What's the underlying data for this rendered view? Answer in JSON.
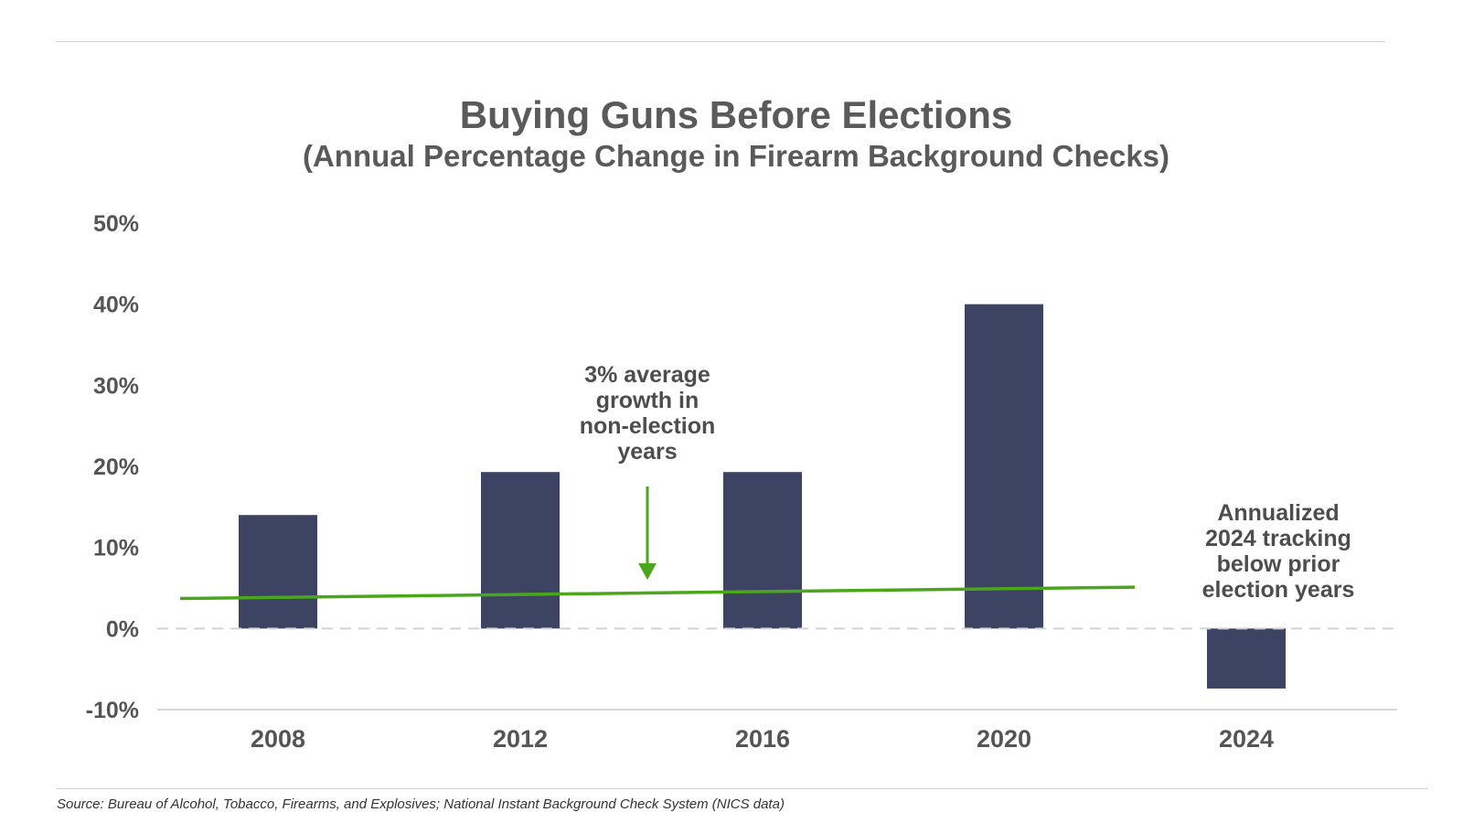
{
  "chart_data": {
    "type": "bar",
    "title": "Buying Guns Before Elections",
    "subtitle": "(Annual Percentage Change in Firearm Background Checks)",
    "categories": [
      "2008",
      "2012",
      "2016",
      "2020",
      "2024"
    ],
    "values": [
      14,
      19.3,
      19.3,
      40,
      -7.4
    ],
    "ylim": [
      -10,
      50
    ],
    "yticks": [
      50,
      40,
      30,
      20,
      10,
      0,
      -10
    ],
    "ytick_labels": [
      "50%",
      "40%",
      "30%",
      "20%",
      "10%",
      "0%",
      "-10%"
    ],
    "xlabel": "",
    "ylabel": "",
    "grid": false,
    "zero_line": "dashed",
    "trend_line": {
      "start_value": 3.7,
      "end_value": 5.1,
      "color": "#4aa61b"
    },
    "annotations": [
      {
        "id": "trend-note",
        "lines": [
          "3% average",
          "growth in",
          "non-election",
          "years"
        ]
      },
      {
        "id": "note-2024",
        "lines": [
          "Annualized",
          "2024 tracking",
          "below prior",
          "election years"
        ]
      }
    ],
    "colors": {
      "bar": "#3d4363",
      "trend": "#4aa61b",
      "text": "#555555"
    }
  },
  "source": "Source: Bureau of Alcohol, Tobacco, Firearms, and Explosives; National Instant Background Check System (NICS data)"
}
